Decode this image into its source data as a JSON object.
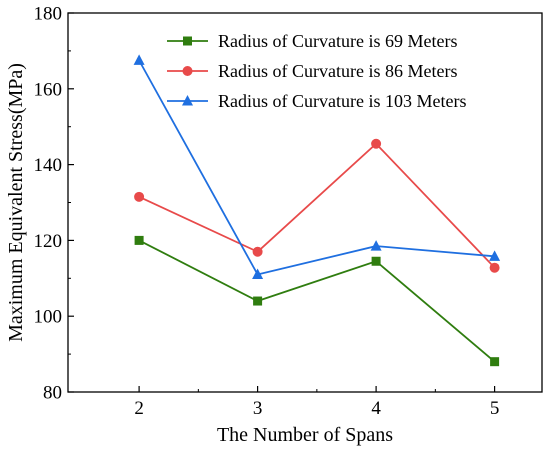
{
  "chart_data": {
    "type": "line",
    "xlabel": "The Number of Spans",
    "ylabel": "Maximum Equivalent Stress(MPa)",
    "categories": [
      2,
      3,
      4,
      5
    ],
    "xlim": [
      1.4,
      5.4
    ],
    "ylim": [
      80,
      180
    ],
    "xticks": [
      "2",
      "3",
      "4",
      "5"
    ],
    "yticks": [
      "80",
      "100",
      "120",
      "140",
      "160",
      "180"
    ],
    "grid": false,
    "legend_position": "top-right",
    "series": [
      {
        "name": "Radius of Curvature is 69 Meters",
        "color": "#2f7d0f",
        "marker": "square",
        "values": [
          120,
          104,
          114.5,
          88
        ]
      },
      {
        "name": "Radius of Curvature is 86 Meters",
        "color": "#e84a4a",
        "marker": "circle",
        "values": [
          131.5,
          117,
          145.5,
          112.8
        ]
      },
      {
        "name": "Radius of Curvature is 103 Meters",
        "color": "#1f6fe0",
        "marker": "triangle",
        "values": [
          167.5,
          111,
          118.5,
          115.8
        ]
      }
    ]
  }
}
